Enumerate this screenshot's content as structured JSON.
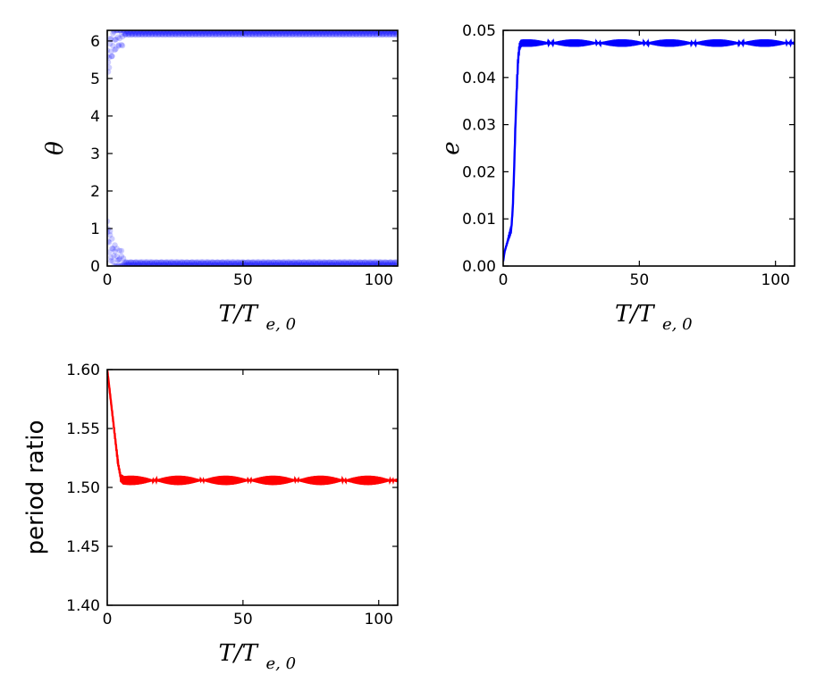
{
  "chart_data": [
    {
      "id": "theta",
      "type": "scatter",
      "xlabel": "T/T_{e,0}",
      "ylabel": "θ",
      "xlim": [
        0,
        107
      ],
      "ylim": [
        0,
        6.283
      ],
      "xticks": [
        "0",
        "50",
        "100"
      ],
      "xtick_values": [
        0,
        50,
        100
      ],
      "yticks": [
        "0",
        "1",
        "2",
        "3",
        "4",
        "5",
        "6"
      ],
      "ytick_values": [
        0,
        1,
        2,
        3,
        4,
        5,
        6
      ],
      "color": "#2020ff",
      "grid": false,
      "series": [
        {
          "values_description": "theta librates near 0 / 2π after initial transient",
          "x": [
            0,
            0.5,
            1,
            1.5,
            2,
            2.5,
            3,
            3.5,
            4,
            5,
            6,
            8,
            10,
            20,
            30,
            40,
            50,
            60,
            70,
            80,
            90,
            100,
            107
          ],
          "y_low": [
            0.9,
            0.75,
            0.6,
            0.45,
            0.35,
            0.25,
            0.18,
            0.12,
            0.08,
            0.06,
            0.05,
            0.05,
            0.05,
            0.05,
            0.05,
            0.05,
            0.05,
            0.05,
            0.05,
            0.05,
            0.05,
            0.05,
            0.05
          ],
          "y_high": [
            5.4,
            5.55,
            5.7,
            5.85,
            5.95,
            6.05,
            6.1,
            6.15,
            6.18,
            6.2,
            6.22,
            6.22,
            6.22,
            6.22,
            6.22,
            6.22,
            6.22,
            6.22,
            6.22,
            6.22,
            6.22,
            6.22,
            6.22
          ]
        }
      ]
    },
    {
      "id": "eccentricity",
      "type": "line",
      "xlabel": "T/T_{e,0}",
      "ylabel": "e",
      "xlim": [
        0,
        107
      ],
      "ylim": [
        0,
        0.05
      ],
      "xticks": [
        "0",
        "50",
        "100"
      ],
      "xtick_values": [
        0,
        50,
        100
      ],
      "yticks": [
        "0.00",
        "0.01",
        "0.02",
        "0.03",
        "0.04",
        "0.05"
      ],
      "ytick_values": [
        0,
        0.01,
        0.02,
        0.03,
        0.04,
        0.05
      ],
      "color": "#0000ff",
      "grid": false,
      "series": [
        {
          "x": [
            0,
            0.5,
            1,
            1.5,
            2,
            2.5,
            3,
            3.5,
            4,
            4.5,
            5,
            5.5,
            6,
            6.5,
            7,
            8,
            10,
            20,
            30,
            40,
            50,
            60,
            70,
            80,
            90,
            100,
            107
          ],
          "y": [
            0.001,
            0.003,
            0.004,
            0.005,
            0.006,
            0.007,
            0.008,
            0.012,
            0.02,
            0.03,
            0.038,
            0.044,
            0.0465,
            0.0472,
            0.0473,
            0.0473,
            0.0473,
            0.0473,
            0.0473,
            0.0473,
            0.0473,
            0.0473,
            0.0473,
            0.0473,
            0.0473,
            0.0473,
            0.0473
          ],
          "band": 0.0008
        }
      ]
    },
    {
      "id": "period_ratio",
      "type": "line",
      "xlabel": "T/T_{e,0}",
      "ylabel": "period ratio",
      "xlim": [
        0,
        107
      ],
      "ylim": [
        1.4,
        1.6
      ],
      "xticks": [
        "0",
        "50",
        "100"
      ],
      "xtick_values": [
        0,
        50,
        100
      ],
      "yticks": [
        "1.40",
        "1.45",
        "1.50",
        "1.55",
        "1.60"
      ],
      "ytick_values": [
        1.4,
        1.45,
        1.5,
        1.55,
        1.6
      ],
      "color": "#ff0000",
      "grid": false,
      "series": [
        {
          "x": [
            0,
            1,
            2,
            3,
            4,
            5,
            6,
            8,
            10,
            20,
            30,
            40,
            50,
            60,
            70,
            80,
            90,
            100,
            107
          ],
          "y": [
            1.6,
            1.58,
            1.56,
            1.54,
            1.52,
            1.508,
            1.506,
            1.506,
            1.506,
            1.506,
            1.506,
            1.506,
            1.506,
            1.506,
            1.506,
            1.506,
            1.506,
            1.506,
            1.506
          ],
          "band": 0.004
        }
      ]
    }
  ]
}
